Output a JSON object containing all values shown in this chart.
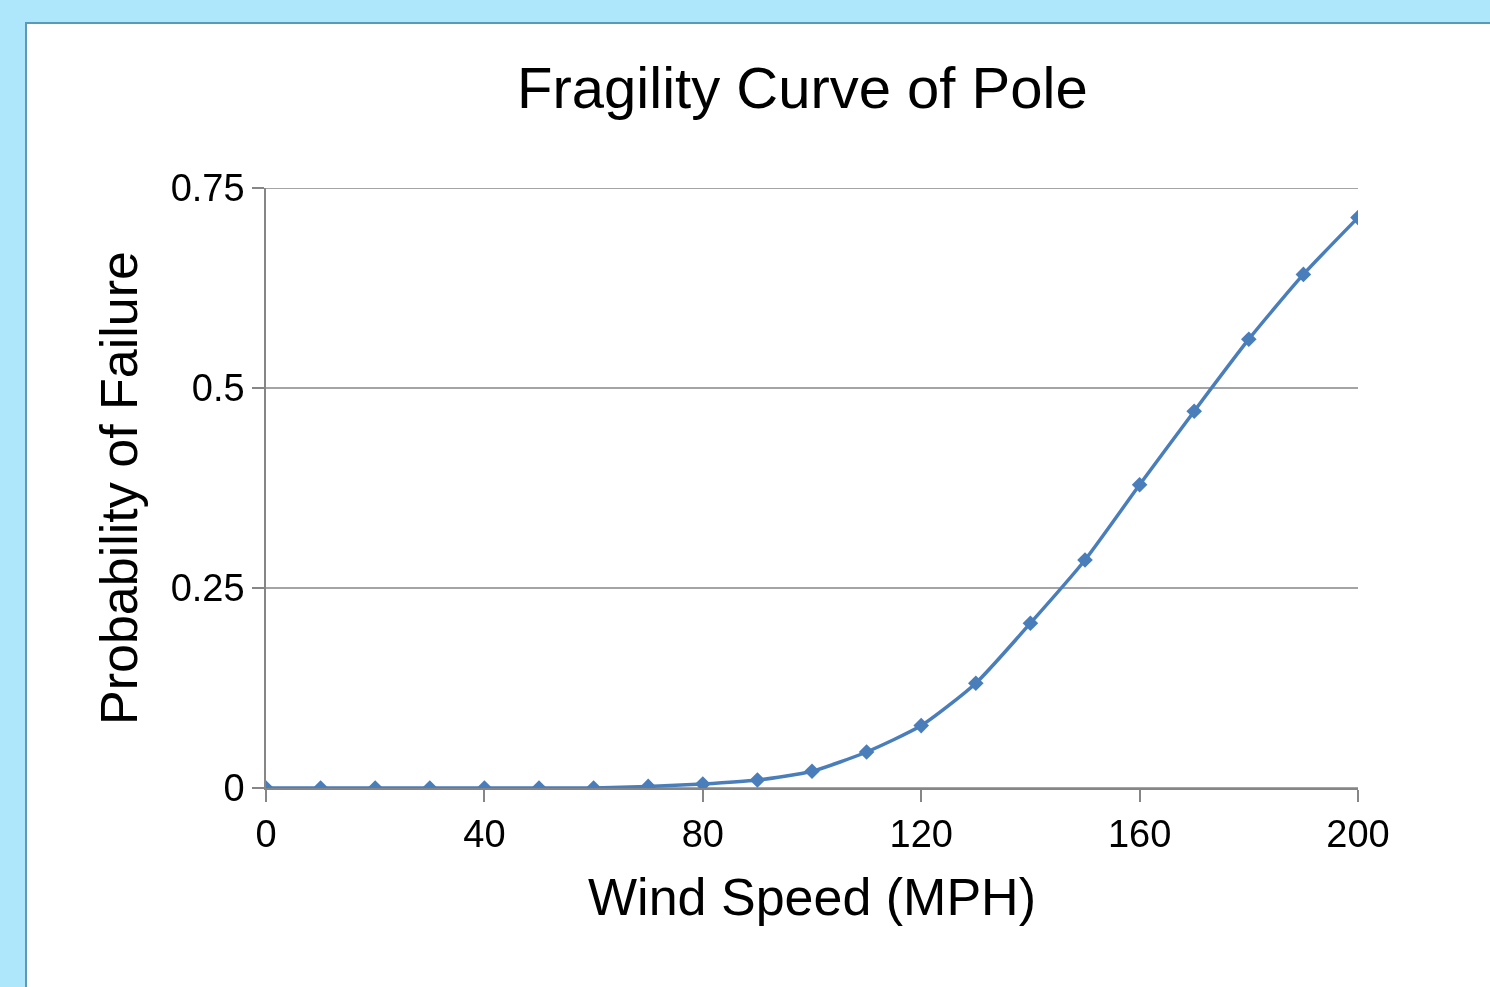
{
  "chart_data": {
    "type": "line",
    "title": "Fragility Curve of Pole",
    "xlabel": "Wind Speed (MPH)",
    "ylabel": "Probability of Failure",
    "x": [
      0,
      10,
      20,
      30,
      40,
      50,
      60,
      70,
      80,
      90,
      100,
      110,
      120,
      130,
      140,
      150,
      160,
      170,
      180,
      190,
      200
    ],
    "series": [
      {
        "color": "#4a7ebb",
        "values": [
          0,
          0,
          0,
          0,
          0,
          0,
          0,
          0.002,
          0.005,
          0.01,
          0.021,
          0.045,
          0.078,
          0.131,
          0.206,
          0.285,
          0.379,
          0.471,
          0.561,
          0.642,
          0.713
        ]
      }
    ],
    "xlim": [
      0,
      200
    ],
    "xticks": [
      0,
      40,
      80,
      120,
      160,
      200
    ],
    "ylim": [
      0,
      0.75
    ],
    "yticks": [
      0,
      0.25,
      0.5,
      0.75
    ],
    "grid": "y",
    "marker": "diamond",
    "line_style": "solid"
  }
}
